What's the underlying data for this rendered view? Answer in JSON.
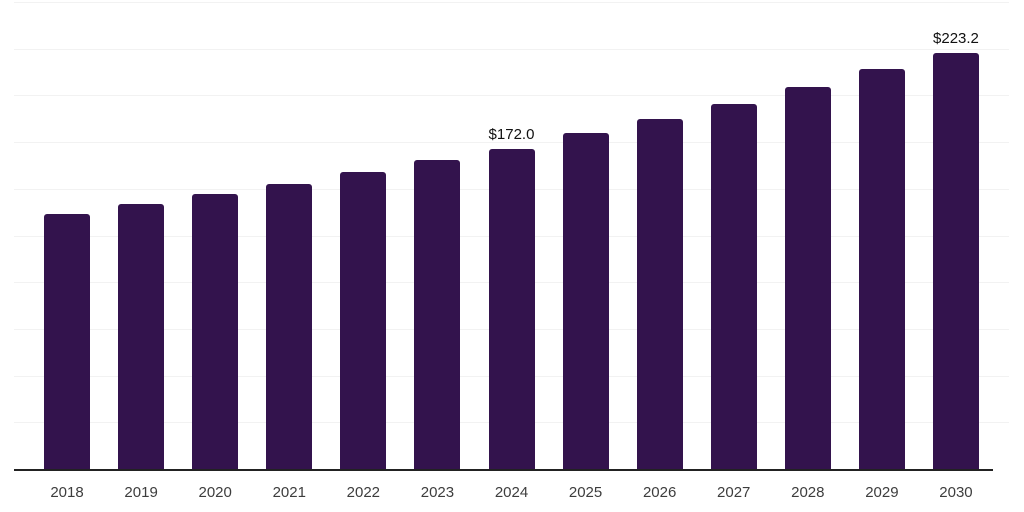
{
  "chart_data": {
    "type": "bar",
    "categories": [
      "2018",
      "2019",
      "2020",
      "2021",
      "2022",
      "2023",
      "2024",
      "2025",
      "2026",
      "2027",
      "2028",
      "2029",
      "2030"
    ],
    "values": [
      136.9,
      142.6,
      147.6,
      153.0,
      159.6,
      165.9,
      172.0,
      180.3,
      187.8,
      195.9,
      205.0,
      214.6,
      223.2
    ],
    "value_labels": {
      "2024": "$172.0",
      "2030": "$223.2"
    },
    "ylim": [
      0,
      250
    ],
    "gridline_step": 25,
    "grid": "horizontal-only",
    "y_axis_tick_labels_visible": false,
    "legend": "none",
    "colors": {
      "bar": "#33134d",
      "gridline": "#f2f2f2",
      "axis_line": "#222222",
      "tick_label": "#3d3d3d",
      "value_label": "#111111",
      "background": "#ffffff"
    }
  }
}
